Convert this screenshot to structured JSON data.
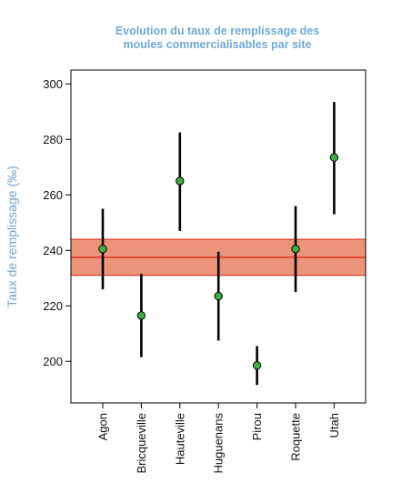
{
  "chart_data": {
    "type": "scatter",
    "title_lines": [
      "Evolution du taux de remplissage des",
      "moules commercialisables par site"
    ],
    "xlabel": "",
    "ylabel": "Taux de remplissage (‰)",
    "categories": [
      "Agon",
      "Bricqueville",
      "Hauteville",
      "Huguenans",
      "Pirou",
      "Roquette",
      "Utah"
    ],
    "points": [
      {
        "category": "Agon",
        "value": 240.5,
        "low": 226,
        "high": 255
      },
      {
        "category": "Bricqueville",
        "value": 216.5,
        "low": 201.5,
        "high": 231.5
      },
      {
        "category": "Hauteville",
        "value": 265,
        "low": 247,
        "high": 282.5
      },
      {
        "category": "Huguenans",
        "value": 223.5,
        "low": 207.5,
        "high": 239.5
      },
      {
        "category": "Pirou",
        "value": 198.5,
        "low": 191.5,
        "high": 205.5
      },
      {
        "category": "Roquette",
        "value": 240.5,
        "low": 225,
        "high": 256
      },
      {
        "category": "Utah",
        "value": 273.5,
        "low": 253,
        "high": 293.5
      }
    ],
    "reference_band": {
      "center": 237.5,
      "low": 231,
      "high": 244
    },
    "yticks": [
      200,
      220,
      240,
      260,
      280,
      300
    ],
    "ylim": [
      185,
      305
    ],
    "grid": false,
    "colors": {
      "title": "#6fa8d6",
      "band_fill": "#ec9479",
      "band_line": "#dd2211",
      "point_fill": "#3cb043",
      "errorbar": "#000000"
    }
  }
}
